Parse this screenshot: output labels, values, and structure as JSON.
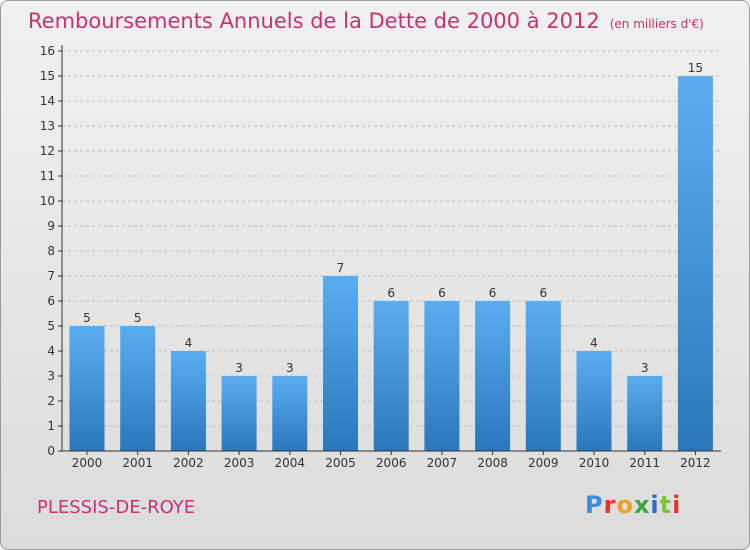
{
  "header": {
    "title": "Remboursements Annuels de la Dette de 2000 à 2012",
    "unit": "(en milliers d'€)"
  },
  "footer": {
    "commune": "PLESSIS-DE-ROYE",
    "logo_text": "Proxiti",
    "logo_colors": [
      "#3a8fd8",
      "#e2352a",
      "#f0a01e",
      "#3aa83a",
      "#2a6fd0",
      "#7bc23e",
      "#e2352a"
    ]
  },
  "colors": {
    "title": "#c8326e",
    "bar_top": "#5aaef0",
    "bar_bottom": "#2a78bb",
    "axis": "#333333",
    "grid": "#bdbdbd"
  },
  "chart_data": {
    "type": "bar",
    "title": "Remboursements Annuels de la Dette de 2000 à 2012",
    "subtitle": "(en milliers d'€)",
    "categories": [
      "2000",
      "2001",
      "2002",
      "2003",
      "2004",
      "2005",
      "2006",
      "2007",
      "2008",
      "2009",
      "2010",
      "2011",
      "2012"
    ],
    "values": [
      5,
      5,
      4,
      3,
      3,
      7,
      6,
      6,
      6,
      6,
      4,
      3,
      15
    ],
    "value_labels": [
      "5",
      "5",
      "4",
      "3",
      "3",
      "7",
      "6",
      "6",
      "6",
      "6",
      "4",
      "3",
      "15"
    ],
    "yticks": [
      "0",
      "1",
      "2",
      "3",
      "4",
      "5",
      "6",
      "7",
      "8",
      "9",
      "10",
      "11",
      "12",
      "13",
      "14",
      "15",
      "16"
    ],
    "ylim": [
      0,
      16
    ],
    "xlabel": "",
    "ylabel": "",
    "grid": true
  }
}
